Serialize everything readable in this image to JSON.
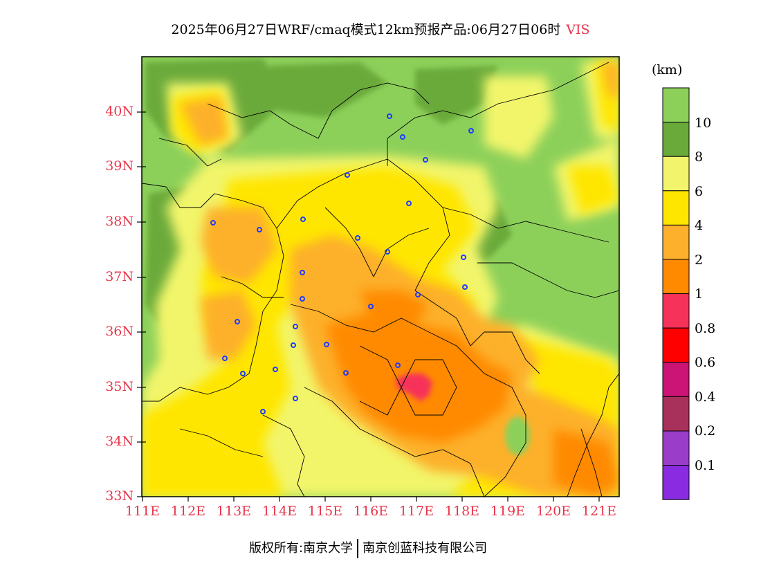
{
  "title": {
    "main": "2025年06月27日WRF/cmaq模式12km预报产品:06月27日06时",
    "variable": "VIS"
  },
  "colors": {
    "label_red": "#e8344a",
    "station_marker": "#1e3cff"
  },
  "latitude_labels": [
    "40N",
    "39N",
    "38N",
    "37N",
    "36N",
    "35N",
    "34N",
    "33N"
  ],
  "longitude_labels": [
    "111E",
    "112E",
    "113E",
    "114E",
    "115E",
    "116E",
    "117E",
    "118E",
    "119E",
    "120E",
    "121E"
  ],
  "colorbar": {
    "unit": "(km)",
    "bands": [
      {
        "color": "#8cd05a"
      },
      {
        "color": "#6aaa3a"
      },
      {
        "color": "#f2f56b"
      },
      {
        "color": "#ffe600"
      },
      {
        "color": "#fdb02b"
      },
      {
        "color": "#ff8a00"
      },
      {
        "color": "#f7325a"
      },
      {
        "color": "#ff0000"
      },
      {
        "color": "#cc1477"
      },
      {
        "color": "#a8315b"
      },
      {
        "color": "#9a3ec9"
      },
      {
        "color": "#8a2be2"
      }
    ],
    "labels": [
      "10",
      "8",
      "6",
      "4",
      "2",
      "1",
      "0.8",
      "0.6",
      "0.4",
      "0.2",
      "0.1"
    ]
  },
  "footer": {
    "left": "版权所有:南京大学",
    "right": "南京创蓝科技有限公司"
  }
}
